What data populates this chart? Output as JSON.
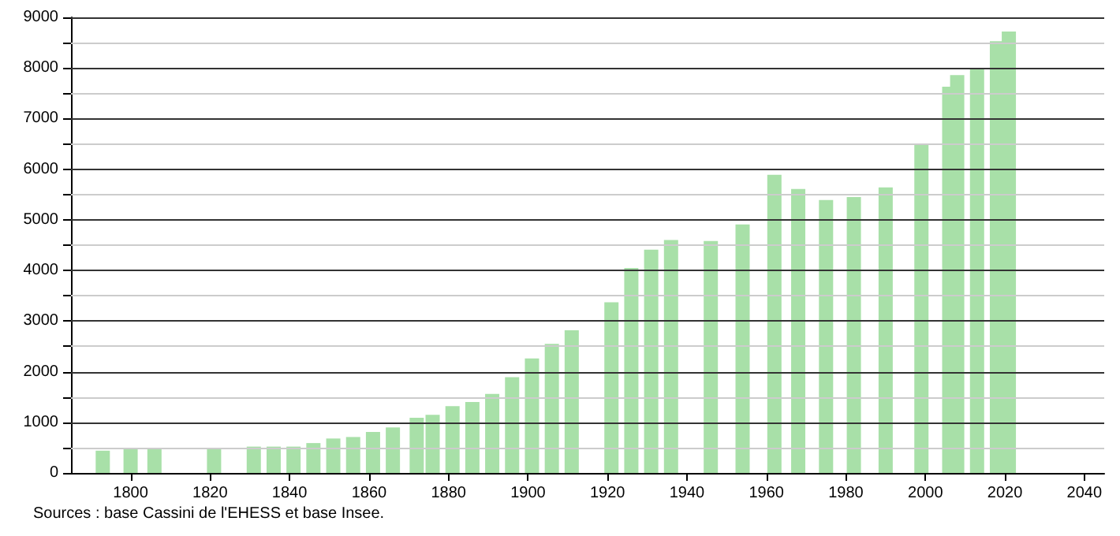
{
  "chart_data": {
    "type": "bar",
    "x": [
      1793,
      1800,
      1806,
      1821,
      1831,
      1836,
      1841,
      1846,
      1851,
      1856,
      1861,
      1866,
      1872,
      1876,
      1881,
      1886,
      1891,
      1896,
      1901,
      1906,
      1911,
      1921,
      1926,
      1931,
      1936,
      1946,
      1954,
      1962,
      1968,
      1975,
      1982,
      1990,
      1999,
      2006,
      2008,
      2013,
      2018,
      2021
    ],
    "values": [
      440,
      490,
      490,
      490,
      520,
      520,
      520,
      590,
      680,
      710,
      810,
      900,
      1090,
      1150,
      1320,
      1400,
      1560,
      1890,
      2260,
      2550,
      2820,
      3370,
      4050,
      4410,
      4600,
      4580,
      4910,
      5890,
      5610,
      5390,
      5450,
      5640,
      6490,
      7630,
      7860,
      8000,
      8530,
      8720
    ],
    "color": "#a8e0a8",
    "xlim": [
      1785,
      2045
    ],
    "xticks": [
      1800,
      1820,
      1840,
      1860,
      1880,
      1900,
      1920,
      1940,
      1960,
      1980,
      2000,
      2020,
      2040
    ],
    "ylim": [
      0,
      9000
    ],
    "yticks": [
      0,
      {
        "value": 500,
        "label": null
      },
      1000,
      {
        "value": 1500,
        "label": null
      },
      2000,
      {
        "value": 2500,
        "label": null
      },
      3000,
      {
        "value": 3500,
        "label": null
      },
      4000,
      {
        "value": 4500,
        "label": null
      },
      5000,
      {
        "value": 5500,
        "label": null
      },
      6000,
      {
        "value": 6500,
        "label": null
      },
      7000,
      {
        "value": 7500,
        "label": null
      },
      8000,
      {
        "value": 8500,
        "label": null
      },
      9000
    ],
    "grid": "y",
    "annotations": [
      "Sources : base Cassini de l'EHESS et base Insee."
    ]
  }
}
